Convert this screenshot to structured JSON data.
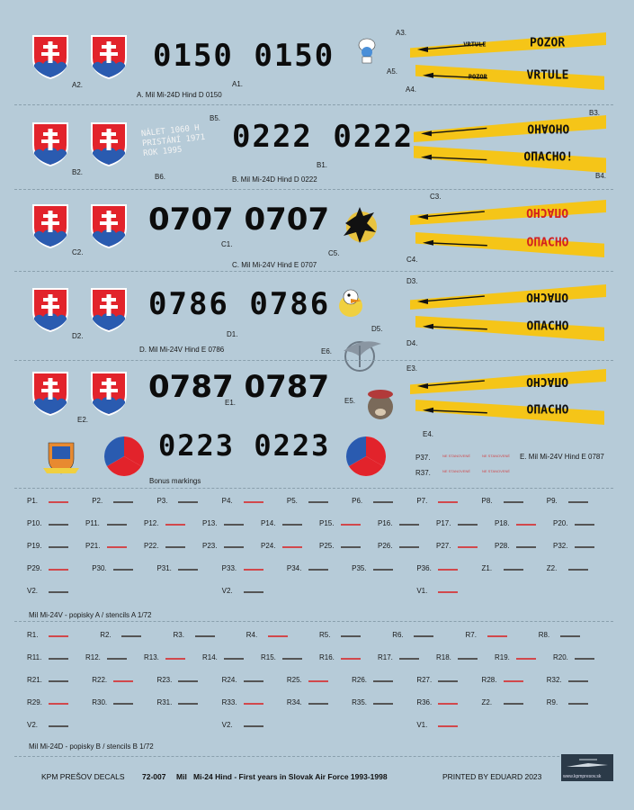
{
  "sections": {
    "a": {
      "caption": "A. Mil Mi-24D Hind D 0150",
      "number": "0150 0150",
      "labels": {
        "a1": "A1.",
        "a2": "A2.",
        "a3": "A3.",
        "a4": "A4.",
        "a5": "A5."
      },
      "banner_top": "POZOR",
      "banner_top_small": "VRTULE",
      "banner_bottom": "VRTULE",
      "banner_bottom_small": "POZOR"
    },
    "b": {
      "caption": "B. Mil Mi-24D Hind D 0222",
      "number": "0222 0222",
      "labels": {
        "b1": "B1.",
        "b2": "B2.",
        "b3": "B3.",
        "b4": "B4.",
        "b5": "B5.",
        "b6": "B6."
      },
      "stencil_lines": [
        "NÁLET 1060 H",
        "PRISTÁNÍ 1971",
        "ROK 1995"
      ],
      "banner_top": "OHOAHO",
      "banner_bottom": "OПАСНО!"
    },
    "c": {
      "caption": "C. Mil Mi-24V Hind E 0707",
      "number": "0707 0707",
      "labels": {
        "c1": "C1.",
        "c2": "C2.",
        "c3": "C3.",
        "c4": "C4.",
        "c5": "C5."
      },
      "banner_top": "OПАСНО",
      "banner_bottom": "OПАСНО"
    },
    "d": {
      "caption": "D. Mil Mi-24V Hind E 0786",
      "number": "0786 0786",
      "labels": {
        "d1": "D1.",
        "d2": "D2.",
        "d3": "D3.",
        "d4": "D4.",
        "d5": "D5.",
        "e6": "E6."
      },
      "banner_top": "OПАСНО",
      "banner_bottom": "OПАСНО"
    },
    "e": {
      "caption": "E. Mil Mi-24V Hind E 0787",
      "number": "0787 0787",
      "labels": {
        "e1": "E1.",
        "e2": "E2.",
        "e3": "E3.",
        "e4": "E4.",
        "e5": "E5.",
        "p37": "P37.",
        "r37": "R37."
      },
      "banner_top": "OПАСНО",
      "banner_bottom": "OПАСНО",
      "stencil_small": "NE STANOVENÉ"
    },
    "bonus": {
      "caption": "Bonus markings",
      "number": "0223 0223"
    }
  },
  "stencils_a": {
    "title": "Mil Mi-24V - popisky A / stencils A 1/72",
    "rows": [
      [
        "P1.",
        "P2.",
        "P3.",
        "P4.",
        "P5.",
        "P6.",
        "P7.",
        "P8.",
        "P9."
      ],
      [
        "P10.",
        "P11.",
        "P12.",
        "P13.",
        "P14.",
        "P15.",
        "P16.",
        "P17.",
        "P18.",
        "P20."
      ],
      [
        "P19.",
        "P21.",
        "P22.",
        "P23.",
        "P24.",
        "P25.",
        "P26.",
        "P27.",
        "P28.",
        "P32."
      ],
      [
        "P29.",
        "P30.",
        "P31.",
        "P33.",
        "P34.",
        "P35.",
        "P36.",
        "Z1.",
        "Z2."
      ],
      [
        "V2.",
        "V2.",
        "V1."
      ]
    ]
  },
  "stencils_b": {
    "title": "Mil Mi-24D - popisky B / stencils B 1/72",
    "rows": [
      [
        "R1.",
        "R2.",
        "R3.",
        "R4.",
        "R5.",
        "R6.",
        "R7.",
        "R8."
      ],
      [
        "R11.",
        "R12.",
        "R13.",
        "R14.",
        "R15.",
        "R16.",
        "R17.",
        "R18.",
        "R19.",
        "R20."
      ],
      [
        "R21.",
        "R22.",
        "R23.",
        "R24.",
        "R25.",
        "R26.",
        "R27.",
        "R28.",
        "R32."
      ],
      [
        "R29.",
        "R30.",
        "R31.",
        "R33.",
        "R34.",
        "R35.",
        "R36.",
        "Z2.",
        "R9."
      ],
      [
        "V2.",
        "V2.",
        "V1."
      ]
    ]
  },
  "footer": {
    "brand": "KPM PREŠOV DECALS",
    "code": "72-007",
    "title": "Mi-24 Hind - First years in Slovak Air Force 1993-1998",
    "title_prefix": "Mil",
    "printed": "PRINTED BY EDUARD  2023",
    "site": "www.kpmpresov.sk"
  },
  "colors": {
    "background": "#b6cbd8",
    "shield_red": "#e2232b",
    "shield_blue": "#2a5bb0",
    "banner_yellow": "#f5c518",
    "banner_text_red": "#d22020",
    "number_black": "#0c0c0c"
  }
}
